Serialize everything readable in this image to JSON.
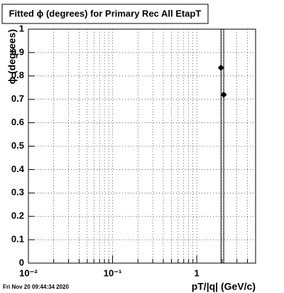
{
  "chart_data": {
    "type": "scatter",
    "title": "Fitted ϕ (degrees) for Primary Rec All EtapT",
    "x_label": "pT/|q| (GeV/c)",
    "y_label": "ϕ (degrees)",
    "footer": "Fri Nov 20 09:44:34 2020",
    "x": [
      1.94,
      2.09
    ],
    "values": [
      0.835,
      0.72
    ],
    "errors": [
      1,
      1
    ],
    "color": "#000000",
    "xlog": true,
    "xlim": [
      0.01,
      5
    ],
    "ylim": [
      0,
      1
    ],
    "xticks": [
      {
        "value": 0.01,
        "label": "10⁻²"
      },
      {
        "value": 0.1,
        "label": "10⁻¹"
      },
      {
        "value": 1,
        "label": "1"
      }
    ],
    "yticks": [
      0,
      0.1,
      0.2,
      0.3,
      0.4,
      0.5,
      0.6,
      0.7,
      0.8,
      0.9,
      1
    ],
    "grid": true
  }
}
